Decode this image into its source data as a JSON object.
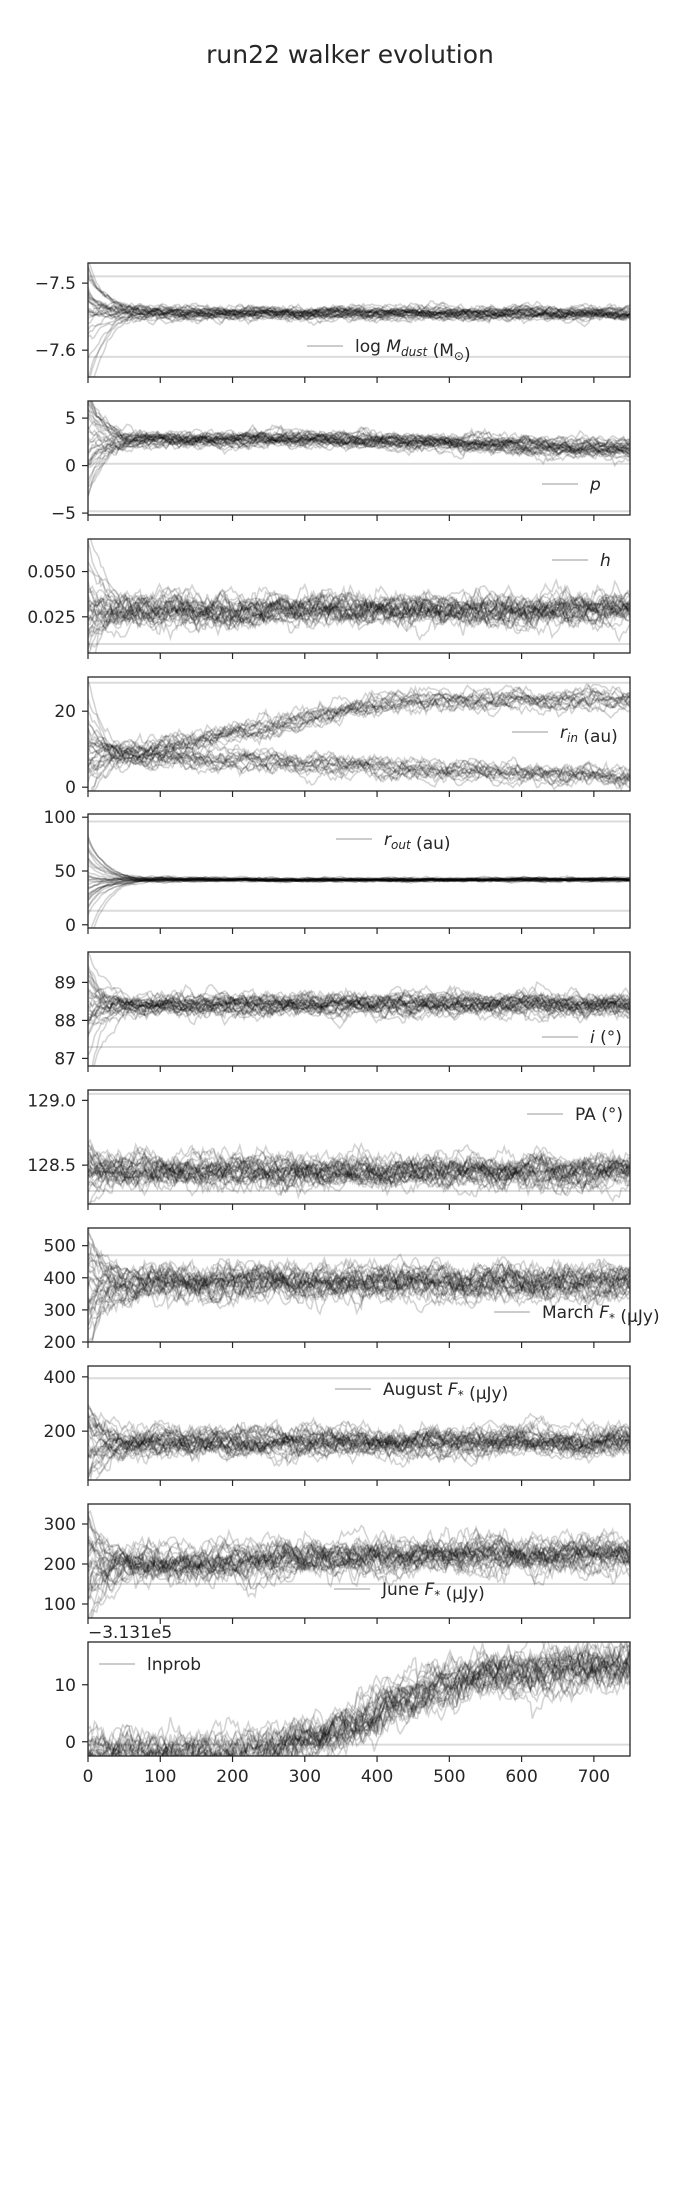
{
  "title": "run22 walker evolution",
  "chart_data": [
    {
      "type": "line",
      "legend": {
        "prefix": "log ",
        "italic": "M",
        "sub": "dust",
        "suffix": " (M",
        "suffix_sub": "⊙",
        "suffix_end": ")",
        "placement": "lower-center"
      },
      "xlim": [
        0,
        750
      ],
      "ylim": [
        -7.64,
        -7.47
      ],
      "yticks": [
        -7.5,
        -7.6
      ],
      "ytick_labels": [
        "−7.5",
        "−7.6"
      ],
      "series_summary": {
        "walkers_converge_to": -7.545,
        "outlier_walkers": [
          -7.49,
          -7.61
        ]
      }
    },
    {
      "type": "line",
      "legend": {
        "italic": "p",
        "placement": "lower-right"
      },
      "xlim": [
        0,
        750
      ],
      "ylim": [
        -5.2,
        6.8
      ],
      "yticks": [
        5,
        0,
        -5
      ],
      "ytick_labels": [
        "5",
        "0",
        "−5"
      ],
      "series_summary": {
        "walkers_converge_to_start": 2.8,
        "walkers_converge_to_end": 1.2,
        "outlier_walkers": [
          -4.8,
          0.2
        ]
      }
    },
    {
      "type": "line",
      "legend": {
        "italic": "h",
        "placement": "upper-right"
      },
      "xlim": [
        0,
        750
      ],
      "ylim": [
        0.005,
        0.068
      ],
      "yticks": [
        0.05,
        0.025
      ],
      "ytick_labels": [
        "0.050",
        "0.025"
      ],
      "series_summary": {
        "walkers_converge_to": 0.029,
        "outlier_walkers": [
          0.01
        ]
      }
    },
    {
      "type": "line",
      "legend": {
        "italic": "r",
        "sub": "in",
        "suffix": " (au)",
        "placement": "center-right"
      },
      "xlim": [
        0,
        750
      ],
      "ylim": [
        -1,
        29
      ],
      "yticks": [
        20,
        0
      ],
      "ytick_labels": [
        "20",
        "0"
      ],
      "series_summary": {
        "upper_branch_end": 23,
        "lower_branch_end": 3,
        "outlier_walkers": [
          27.5
        ]
      }
    },
    {
      "type": "line",
      "legend": {
        "italic": "r",
        "sub": "out",
        "suffix": " (au)",
        "placement": "upper-center"
      },
      "xlim": [
        0,
        750
      ],
      "ylim": [
        -3,
        103
      ],
      "yticks": [
        100,
        50,
        0
      ],
      "ytick_labels": [
        "100",
        "50",
        "0"
      ],
      "series_summary": {
        "walkers_converge_to": 42,
        "outlier_walkers": [
          96,
          13
        ]
      }
    },
    {
      "type": "line",
      "legend": {
        "italic": "i",
        "suffix": " (°)",
        "placement": "lower-right"
      },
      "xlim": [
        0,
        750
      ],
      "ylim": [
        86.8,
        89.8
      ],
      "yticks": [
        89,
        88,
        87
      ],
      "ytick_labels": [
        "89",
        "88",
        "87"
      ],
      "series_summary": {
        "walkers_converge_to": 88.4,
        "outlier_walkers": [
          87.3
        ]
      }
    },
    {
      "type": "line",
      "legend": {
        "prefix": "PA  (°)",
        "placement": "upper-right"
      },
      "xlim": [
        0,
        750
      ],
      "ylim": [
        128.2,
        129.08
      ],
      "yticks": [
        129.0,
        128.5
      ],
      "ytick_labels": [
        "129.0",
        "128.5"
      ],
      "series_summary": {
        "walkers_converge_to": 128.45,
        "outlier_walkers": [
          129.05,
          128.3
        ]
      }
    },
    {
      "type": "line",
      "legend": {
        "prefix": "March ",
        "italic": "F",
        "sub": "*",
        "suffix": " (μJy)",
        "placement": "lower-right"
      },
      "xlim": [
        0,
        750
      ],
      "ylim": [
        200,
        555
      ],
      "yticks": [
        500,
        400,
        300,
        200
      ],
      "ytick_labels": [
        "500",
        "400",
        "300",
        "200"
      ],
      "series_summary": {
        "walkers_converge_to": 385,
        "outlier_walkers": [
          470
        ]
      }
    },
    {
      "type": "line",
      "legend": {
        "prefix": "August ",
        "italic": "F",
        "sub": "*",
        "suffix": " (μJy)",
        "placement": "upper-center"
      },
      "xlim": [
        0,
        750
      ],
      "ylim": [
        20,
        440
      ],
      "yticks": [
        400,
        200
      ],
      "ytick_labels": [
        "400",
        "200"
      ],
      "series_summary": {
        "walkers_converge_to": 160,
        "outlier_walkers": [
          395
        ]
      }
    },
    {
      "type": "line",
      "legend": {
        "prefix": "June ",
        "italic": "F",
        "sub": "*",
        "suffix": " (μJy)",
        "placement": "lower-center"
      },
      "xlim": [
        0,
        750
      ],
      "ylim": [
        65,
        350
      ],
      "yticks": [
        300,
        200,
        100
      ],
      "ytick_labels": [
        "300",
        "200",
        "100"
      ],
      "series_summary": {
        "walkers_converge_to_start": 190,
        "walkers_converge_to_end": 225,
        "outlier_walkers": [
          150
        ]
      }
    },
    {
      "type": "line",
      "legend": {
        "prefix": "lnprob",
        "placement": "upper-left"
      },
      "offset_label": "−3.131e5",
      "xlim": [
        0,
        750
      ],
      "ylim": [
        -2.5,
        17.5
      ],
      "yticks": [
        10,
        0
      ],
      "ytick_labels": [
        "10",
        "0"
      ],
      "xticks": [
        0,
        100,
        200,
        300,
        400,
        500,
        600,
        700
      ],
      "xtick_labels": [
        "0",
        "100",
        "200",
        "300",
        "400",
        "500",
        "600",
        "700"
      ],
      "series_summary": {
        "walkers_rise_to": 13.5,
        "start_level": -3,
        "outlier_walkers": [
          -0.5
        ]
      }
    }
  ]
}
